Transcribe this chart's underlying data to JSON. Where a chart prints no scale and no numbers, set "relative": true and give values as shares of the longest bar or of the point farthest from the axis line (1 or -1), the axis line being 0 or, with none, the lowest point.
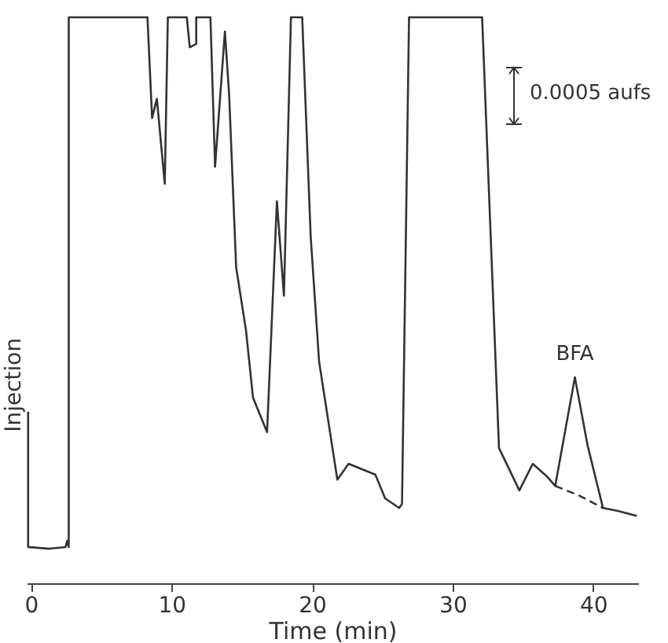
{
  "chart_data": {
    "type": "line",
    "relative": true,
    "xlabel": "Time (min)",
    "xlim": [
      -0.3,
      43.2
    ],
    "xticks": [
      0,
      10,
      20,
      30,
      40
    ],
    "grid": false,
    "annotations": [
      "0.0005 aufs",
      {
        "text": "Injection",
        "x": -0.2,
        "y": 0.303
      },
      {
        "text": "BFA",
        "x": 38.7,
        "y": 0.364
      }
    ],
    "series": [
      {
        "color": "#333333",
        "line_style": "solid",
        "x": [
          -0.2,
          -0.2,
          1.3,
          2.46,
          2.58,
          2.69,
          2.69,
          8.29,
          8.62,
          8.96,
          9.52,
          9.74,
          11.09,
          11.3,
          11.76,
          11.76,
          12.77,
          13.1,
          13.8,
          14.1,
          14.6,
          15.3,
          15.8,
          16.8,
          17.5,
          18.0,
          18.5,
          19.3,
          19.9,
          20.5,
          21.8,
          22.6,
          24.5,
          25.2,
          26.2,
          26.4,
          26.9,
          32.1,
          33.3,
          34.75,
          35.7,
          36.7,
          37.3,
          38.7,
          39.6,
          40.7,
          41.7,
          43.1
        ],
        "values": [
          0.303,
          0.064,
          0.061,
          0.064,
          0.075,
          0.064,
          1,
          1,
          0.822,
          0.856,
          0.706,
          1,
          1,
          0.947,
          0.953,
          1,
          1,
          0.736,
          0.975,
          0.864,
          0.558,
          0.447,
          0.328,
          0.267,
          0.675,
          0.508,
          1,
          1,
          0.614,
          0.392,
          0.183,
          0.211,
          0.192,
          0.15,
          0.133,
          0.14,
          1,
          1,
          0.239,
          0.164,
          0.211,
          0.189,
          0.172,
          0.364,
          0.244,
          0.133,
          0.128,
          0.119
        ]
      },
      {
        "color": "#333333",
        "line_style": "dashed",
        "x": [
          37.3,
          39.0,
          40.7
        ],
        "values": [
          0.172,
          0.155,
          0.133
        ]
      }
    ]
  }
}
